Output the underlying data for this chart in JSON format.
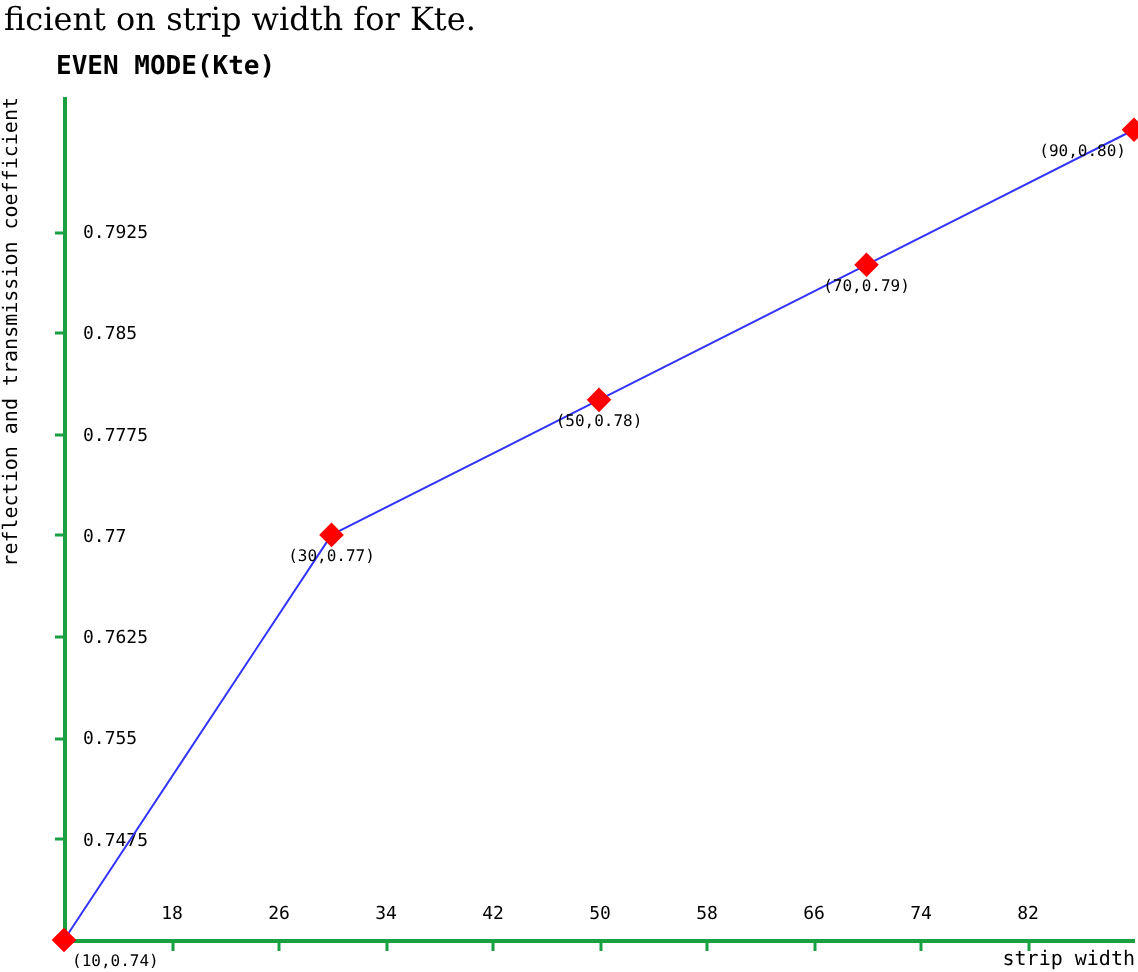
{
  "chart_data": {
    "type": "line",
    "title": "EVEN MODE(Kte)",
    "xlabel": "strip width",
    "ylabel": "reflection and transmission coefficient",
    "annotations": [
      "ficient on strip width for Kte."
    ],
    "x": [
      10,
      30,
      50,
      70,
      90
    ],
    "series": [
      {
        "color": "#3333ff",
        "colors": [
          "#ff0000",
          "#ff0000",
          "#ff0000",
          "#ff0000",
          "#ff0000"
        ],
        "values": [
          0.74,
          0.77,
          0.78,
          0.79,
          0.8
        ],
        "value_labels": [
          "(10,0.74)",
          "(30,0.77)",
          "(50,0.78)",
          "(70,0.79)",
          "(90,0.80)"
        ]
      }
    ],
    "marker": "diamond",
    "xlim": [
      10,
      90
    ],
    "xticks": [
      18,
      26,
      34,
      42,
      50,
      58,
      66,
      74,
      82
    ],
    "ylim": [
      0.74,
      0.8025
    ],
    "yticks": [
      0.7475,
      0.755,
      0.7625,
      0.77,
      0.7775,
      0.785,
      0.7925
    ],
    "grid": false
  }
}
